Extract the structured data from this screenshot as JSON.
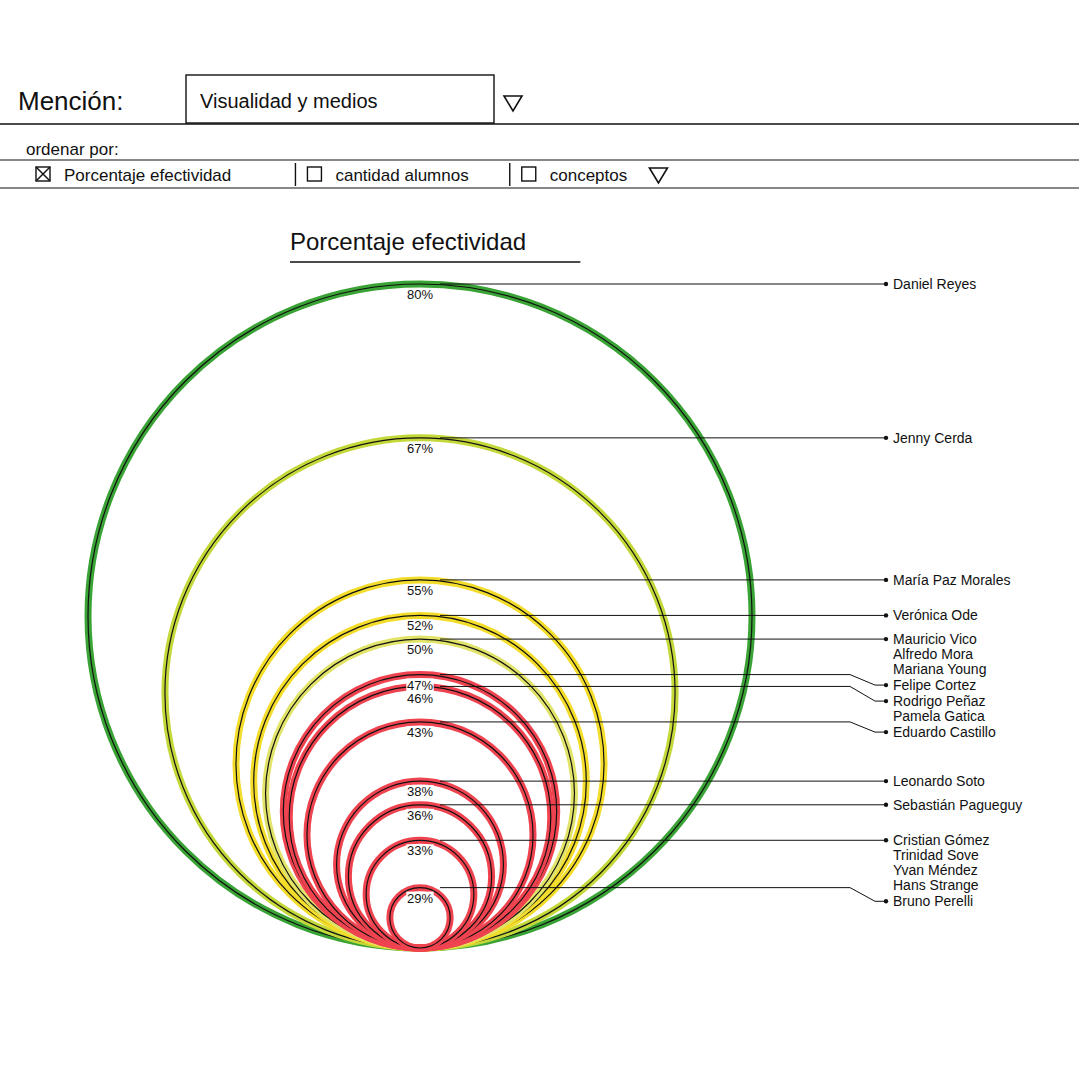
{
  "header": {
    "label": "Mención:",
    "dropdown": "Visualidad y medios"
  },
  "sort": {
    "label": "ordenar por:",
    "options": [
      {
        "text": "Porcentaje efectividad",
        "checked": true,
        "dropdown": false
      },
      {
        "text": "cantidad alumnos",
        "checked": false,
        "dropdown": false
      },
      {
        "text": "conceptos",
        "checked": false,
        "dropdown": true
      }
    ]
  },
  "chart_data": {
    "type": "nested_circles",
    "title": "Porcentaje efectividad",
    "values": [
      80,
      67,
      55,
      52,
      50,
      47,
      46,
      43,
      38,
      36,
      33,
      29
    ],
    "value_labels": [
      "80%",
      "67%",
      "55%",
      "52%",
      "50%",
      "47%",
      "46%",
      "43%",
      "38%",
      "36%",
      "33%",
      "29%"
    ],
    "names": [
      [
        "Daniel Reyes"
      ],
      [
        "Jenny Cerda"
      ],
      [
        "María Paz Morales"
      ],
      [
        "Verónica Ode"
      ],
      [
        "Mauricio Vico",
        "Alfredo Mora",
        "Mariana Young"
      ],
      [
        "Felipe Cortez"
      ],
      [
        "Rodrigo Peñaz",
        "Pamela Gatica"
      ],
      [
        "Eduardo Castillo"
      ],
      [
        "Leonardo Soto"
      ],
      [
        "Sebastián Pagueguy"
      ],
      [
        "Cristian Gómez",
        "Trinidad Sove",
        "Yvan Méndez",
        "Hans Strange"
      ],
      [
        "Bruno Perelli"
      ]
    ],
    "colors": [
      "#3aa335",
      "#c5d83a",
      "#f3dc2a",
      "#f3dc2a",
      "#e2e46a",
      "#ef4350",
      "#ef4350",
      "#ef4350",
      "#ef4350",
      "#ef4350",
      "#ef4350",
      "#ef4350"
    ]
  }
}
